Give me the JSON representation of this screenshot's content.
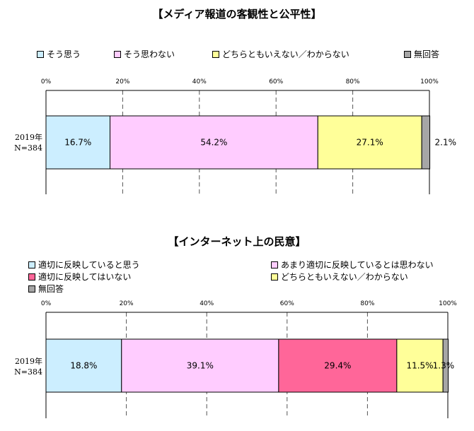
{
  "chart_data": [
    {
      "type": "bar",
      "orientation": "horizontal",
      "stacked": true,
      "title": "【メディア報道の客観性と公平性】",
      "categories": [
        "2019年\nN=384"
      ],
      "category_lines": [
        "2019年",
        "N=384"
      ],
      "xlim": [
        0,
        100
      ],
      "ticks": [
        "0%",
        "20%",
        "40%",
        "60%",
        "80%",
        "100%"
      ],
      "grid": true,
      "legend": "top",
      "series": [
        {
          "name": "そう思う",
          "values": [
            16.7
          ],
          "label": "16.7%",
          "color": "#cceeff"
        },
        {
          "name": "そう思わない",
          "values": [
            54.2
          ],
          "label": "54.2%",
          "color": "#ffccff"
        },
        {
          "name": "どちらともいえない／わからない",
          "values": [
            27.1
          ],
          "label": "27.1%",
          "color": "#ffff99"
        },
        {
          "name": "無回答",
          "values": [
            2.1
          ],
          "label": "2.1%",
          "color": "#a6a6a6"
        }
      ]
    },
    {
      "type": "bar",
      "orientation": "horizontal",
      "stacked": true,
      "title": "【インターネット上の民意】",
      "categories": [
        "2019年\nN=384"
      ],
      "category_lines": [
        "2019年",
        "N=384"
      ],
      "xlim": [
        0,
        100
      ],
      "ticks": [
        "0%",
        "20%",
        "40%",
        "60%",
        "80%",
        "100%"
      ],
      "grid": true,
      "legend": "top",
      "series": [
        {
          "name": "適切に反映していると思う",
          "values": [
            18.8
          ],
          "label": "18.8%",
          "color": "#cceeff"
        },
        {
          "name": "あまり適切に反映しているとは思わない",
          "values": [
            39.1
          ],
          "label": "39.1%",
          "color": "#ffccff"
        },
        {
          "name": "適切に反映してはいない",
          "values": [
            29.4
          ],
          "label": "29.4%",
          "color": "#ff6699"
        },
        {
          "name": "どちらともいえない／わからない",
          "values": [
            11.5
          ],
          "label": "11.5%",
          "color": "#ffff99"
        },
        {
          "name": "無回答",
          "values": [
            1.3
          ],
          "label": "1.3%",
          "color": "#a6a6a6"
        }
      ]
    }
  ]
}
